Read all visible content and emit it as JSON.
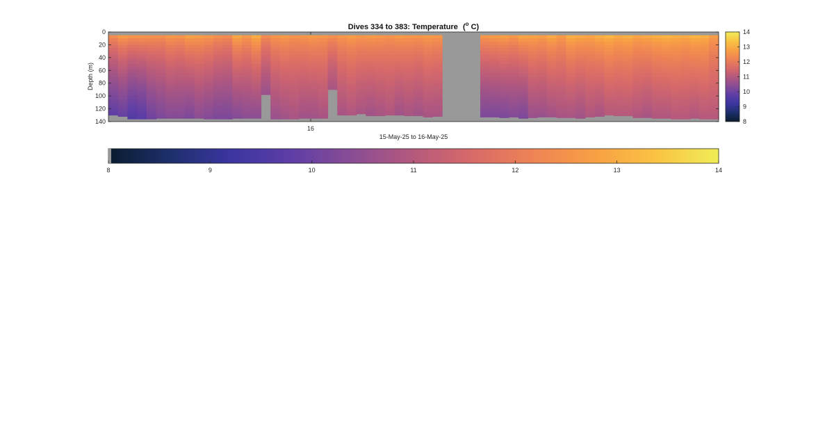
{
  "chart_data": {
    "type": "heatmap",
    "title": "Dives 334 to 383: Temperature",
    "title_unit_prefix": "(",
    "title_unit_sup": "o",
    "title_unit_suffix": " C)",
    "xlabel": "15-May-25 to 16-May-25",
    "ylabel": "Depth (m)",
    "x_tick_labels": [
      "16"
    ],
    "y_ticks": [
      0,
      20,
      40,
      60,
      80,
      100,
      120,
      140
    ],
    "y_tick_labels": [
      "0",
      "20",
      "40",
      "60",
      "80",
      "100",
      "120",
      "140"
    ],
    "ylim": [
      0,
      140
    ],
    "clim": [
      8,
      14
    ],
    "colorbar_ticks": [
      8,
      9,
      10,
      11,
      12,
      13,
      14
    ],
    "colorbar_tick_labels": [
      "8",
      "9",
      "10",
      "11",
      "12",
      "13",
      "14"
    ],
    "horizontal_colorbar_ticks": [
      8,
      9,
      10,
      11,
      12,
      13,
      14
    ],
    "horizontal_colorbar_tick_labels": [
      "8",
      "9",
      "10",
      "11",
      "12",
      "13",
      "14"
    ],
    "colormap": [
      "#0a1c2e",
      "#1d2f6b",
      "#3b35a0",
      "#5e3ea6",
      "#8a4d94",
      "#b5597d",
      "#d96b68",
      "#ef8454",
      "#f8a144",
      "#fac443",
      "#f0ed58"
    ],
    "missing_color": "#999999",
    "dives_first": 334,
    "dives_last": 383,
    "gap_dives": [
      361,
      362,
      363,
      364
    ],
    "dive_max_depth_m": [
      130,
      132,
      136,
      136,
      136,
      135,
      135,
      135,
      135,
      135,
      136,
      136,
      136,
      135,
      135,
      135,
      98,
      136,
      136,
      136,
      135,
      135,
      135,
      90,
      130,
      130,
      128,
      131,
      131,
      130,
      130,
      131,
      131,
      133,
      132,
      null,
      null,
      null,
      null,
      133,
      133,
      134,
      133,
      135,
      134,
      133,
      133,
      134,
      134,
      135,
      133,
      132,
      130,
      131,
      131,
      134,
      134,
      135,
      135,
      136,
      136,
      135,
      136,
      136
    ],
    "surface_temp_c": [
      12.7,
      13.0,
      12.9,
      12.9,
      12.8,
      12.7,
      12.9,
      12.8,
      13.1,
      13.0,
      12.9,
      12.7,
      12.6,
      13.2,
      12.9,
      13.3,
      12.6,
      12.8,
      12.9,
      12.7,
      12.8,
      12.9,
      12.8,
      12.7,
      12.8,
      12.9,
      12.8,
      12.9,
      12.8,
      12.7,
      12.9,
      12.8,
      12.8,
      12.9,
      12.8,
      null,
      null,
      null,
      null,
      12.9,
      13.0,
      13.1,
      12.9,
      13.2,
      13.1,
      13.0,
      13.2,
      12.9,
      13.3,
      13.2,
      13.1,
      13.3,
      13.4,
      13.2,
      13.3,
      13.1,
      13.2,
      13.3,
      13.4,
      13.3,
      13.2,
      13.4,
      13.3,
      12.9
    ],
    "bottom_temp_c": [
      9.8,
      9.9,
      9.6,
      9.7,
      10.0,
      10.2,
      10.3,
      10.3,
      10.2,
      10.4,
      10.3,
      10.2,
      10.2,
      10.3,
      10.4,
      10.4,
      10.6,
      10.6,
      10.7,
      10.8,
      10.7,
      10.7,
      10.8,
      10.8,
      10.8,
      10.9,
      10.8,
      10.7,
      10.8,
      10.9,
      10.7,
      10.8,
      10.7,
      10.8,
      10.8,
      null,
      null,
      null,
      null,
      10.2,
      10.2,
      10.2,
      10.3,
      10.2,
      10.6,
      10.6,
      10.7,
      10.8,
      10.8,
      10.7,
      10.9,
      10.8,
      11.0,
      11.0,
      11.0,
      10.9,
      10.8,
      10.9,
      10.9,
      11.0,
      11.0,
      10.9,
      11.0,
      11.0
    ]
  }
}
